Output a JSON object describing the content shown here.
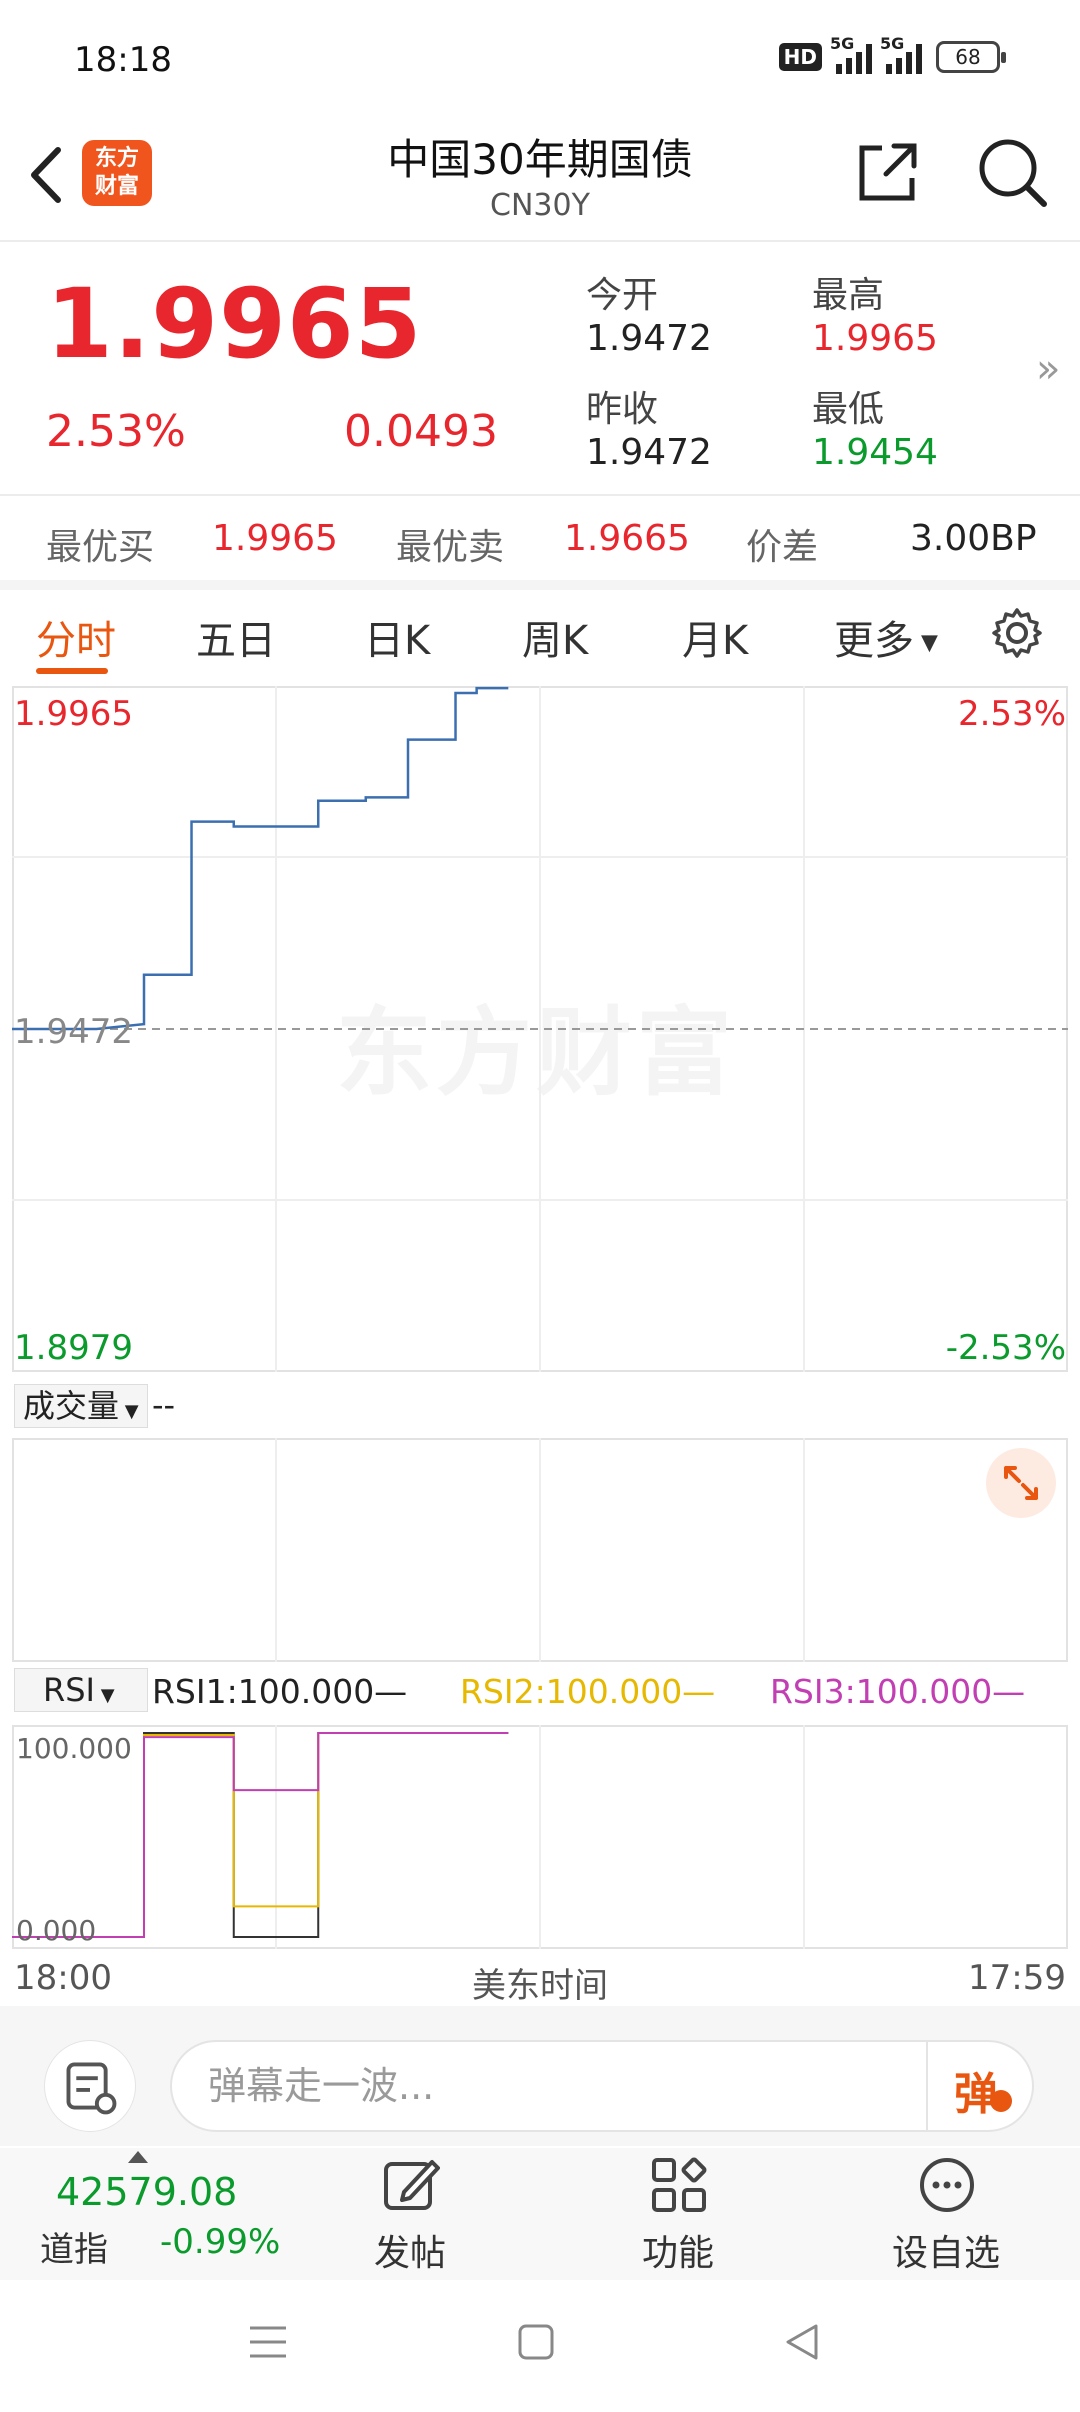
{
  "status_bar": {
    "time": "18:18",
    "hd": "HD",
    "net1": "5G",
    "net2": "5G",
    "battery": "68"
  },
  "header": {
    "logo_line1": "东方",
    "logo_line2": "财富",
    "title": "中国30年期国债",
    "subtitle": "CN30Y"
  },
  "quote": {
    "price": "1.9965",
    "change_pct": "2.53%",
    "change": "0.0493",
    "open_label": "今开",
    "open": "1.9472",
    "high_label": "最高",
    "high": "1.9965",
    "prev_close_label": "昨收",
    "prev_close": "1.9472",
    "low_label": "最低",
    "low": "1.9454"
  },
  "best": {
    "bid_label": "最优买",
    "bid": "1.9965",
    "ask_label": "最优卖",
    "ask": "1.9665",
    "spread_label": "价差",
    "spread": "3.00BP"
  },
  "tabs": [
    "分时",
    "五日",
    "日K",
    "周K",
    "月K",
    "更多"
  ],
  "chart": {
    "y_top": "1.9965",
    "y_mid": "1.9472",
    "y_bottom": "1.8979",
    "pct_top": "2.53%",
    "pct_bottom": "-2.53%",
    "watermark": "东方财富",
    "volume_label": "成交量",
    "volume_value": "--",
    "rsi_label": "RSI",
    "rsi1": "RSI1:100.000—",
    "rsi2": "RSI2:100.000—",
    "rsi3": "RSI3:100.000—",
    "rsi_top": "100.000",
    "rsi_bottom": "0.000",
    "time_start": "18:00",
    "time_mid": "美东时间",
    "time_end": "17:59"
  },
  "chart_data": {
    "type": "line",
    "title": "",
    "ylim": [
      1.8979,
      1.9965
    ],
    "prev_close": 1.9472,
    "price_series": [
      {
        "x": 0.0,
        "y": 1.9472
      },
      {
        "x": 0.08,
        "y": 1.9472
      },
      {
        "x": 0.125,
        "y": 1.9479
      },
      {
        "x": 0.125,
        "y": 1.955
      },
      {
        "x": 0.17,
        "y": 1.955
      },
      {
        "x": 0.17,
        "y": 1.977
      },
      {
        "x": 0.21,
        "y": 1.977
      },
      {
        "x": 0.21,
        "y": 1.9763
      },
      {
        "x": 0.29,
        "y": 1.9763
      },
      {
        "x": 0.29,
        "y": 1.98
      },
      {
        "x": 0.335,
        "y": 1.98
      },
      {
        "x": 0.335,
        "y": 1.9805
      },
      {
        "x": 0.375,
        "y": 1.9805
      },
      {
        "x": 0.375,
        "y": 1.9888
      },
      {
        "x": 0.42,
        "y": 1.9888
      },
      {
        "x": 0.42,
        "y": 1.9955
      },
      {
        "x": 0.44,
        "y": 1.9955
      },
      {
        "x": 0.44,
        "y": 1.9962
      },
      {
        "x": 0.47,
        "y": 1.9962
      }
    ],
    "rsi_ylim": [
      0,
      100
    ],
    "rsi_series": [
      {
        "name": "RSI1",
        "color": "#333333",
        "points": [
          [
            0,
            0
          ],
          [
            0.125,
            0
          ],
          [
            0.125,
            100
          ],
          [
            0.21,
            100
          ],
          [
            0.21,
            0
          ],
          [
            0.29,
            0
          ],
          [
            0.29,
            100
          ],
          [
            0.47,
            100
          ]
        ]
      },
      {
        "name": "RSI2",
        "color": "#e6b800",
        "points": [
          [
            0,
            0
          ],
          [
            0.125,
            0
          ],
          [
            0.125,
            99
          ],
          [
            0.21,
            99
          ],
          [
            0.21,
            15
          ],
          [
            0.29,
            15
          ],
          [
            0.29,
            100
          ],
          [
            0.47,
            100
          ]
        ]
      },
      {
        "name": "RSI3",
        "color": "#c23fb3",
        "points": [
          [
            0,
            0
          ],
          [
            0.125,
            0
          ],
          [
            0.125,
            98
          ],
          [
            0.21,
            98
          ],
          [
            0.21,
            72
          ],
          [
            0.29,
            72
          ],
          [
            0.29,
            100
          ],
          [
            0.47,
            100
          ]
        ]
      }
    ]
  },
  "comment": {
    "placeholder": "弹幕走一波...",
    "danmu_btn": "弹"
  },
  "bottom_nav": {
    "index_value": "42579.08",
    "index_name": "道指",
    "index_pct": "-0.99%",
    "post": "发帖",
    "function": "功能",
    "watchlist": "设自选"
  },
  "colors": {
    "up": "#e8262d",
    "down": "#0a9b2c",
    "accent": "#e8560f",
    "price_line": "#3b6fb0"
  }
}
